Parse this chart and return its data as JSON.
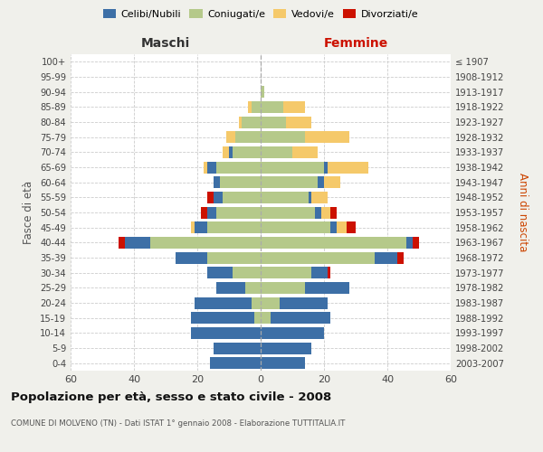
{
  "age_groups": [
    "0-4",
    "5-9",
    "10-14",
    "15-19",
    "20-24",
    "25-29",
    "30-34",
    "35-39",
    "40-44",
    "45-49",
    "50-54",
    "55-59",
    "60-64",
    "65-69",
    "70-74",
    "75-79",
    "80-84",
    "85-89",
    "90-94",
    "95-99",
    "100+"
  ],
  "birth_years": [
    "2003-2007",
    "1998-2002",
    "1993-1997",
    "1988-1992",
    "1983-1987",
    "1978-1982",
    "1973-1977",
    "1968-1972",
    "1963-1967",
    "1958-1962",
    "1953-1957",
    "1948-1952",
    "1943-1947",
    "1938-1942",
    "1933-1937",
    "1928-1932",
    "1923-1927",
    "1918-1922",
    "1913-1917",
    "1908-1912",
    "≤ 1907"
  ],
  "colors": {
    "celibi": "#3d6fa6",
    "coniugati": "#b5c98a",
    "vedovi": "#f5c96a",
    "divorziati": "#cc1100"
  },
  "males": {
    "celibi": [
      16,
      15,
      22,
      20,
      18,
      9,
      8,
      10,
      8,
      4,
      3,
      3,
      2,
      3,
      1,
      0,
      0,
      0,
      0,
      0,
      0
    ],
    "coniugati": [
      0,
      0,
      0,
      2,
      3,
      5,
      9,
      17,
      35,
      17,
      14,
      12,
      13,
      14,
      9,
      8,
      6,
      3,
      0,
      0,
      0
    ],
    "vedovi": [
      0,
      0,
      0,
      0,
      0,
      0,
      0,
      0,
      0,
      1,
      0,
      0,
      0,
      1,
      2,
      3,
      1,
      1,
      0,
      0,
      0
    ],
    "divorziati": [
      0,
      0,
      0,
      0,
      0,
      0,
      0,
      0,
      2,
      0,
      2,
      2,
      0,
      0,
      0,
      0,
      0,
      0,
      0,
      0,
      0
    ]
  },
  "females": {
    "celibi": [
      14,
      16,
      20,
      19,
      15,
      14,
      5,
      7,
      2,
      2,
      2,
      1,
      2,
      1,
      0,
      0,
      0,
      0,
      0,
      0,
      0
    ],
    "coniugati": [
      0,
      0,
      0,
      3,
      6,
      14,
      16,
      36,
      46,
      22,
      17,
      15,
      18,
      20,
      10,
      14,
      8,
      7,
      1,
      0,
      0
    ],
    "vedovi": [
      0,
      0,
      0,
      0,
      0,
      0,
      0,
      0,
      0,
      3,
      3,
      5,
      5,
      13,
      8,
      14,
      8,
      7,
      0,
      0,
      0
    ],
    "divorziati": [
      0,
      0,
      0,
      0,
      0,
      0,
      1,
      2,
      2,
      3,
      2,
      0,
      0,
      0,
      0,
      0,
      0,
      0,
      0,
      0,
      0
    ]
  },
  "xlim": 60,
  "title": "Popolazione per età, sesso e stato civile - 2008",
  "subtitle": "COMUNE DI MOLVENO (TN) - Dati ISTAT 1° gennaio 2008 - Elaborazione TUTTITALIA.IT",
  "ylabel_left": "Fasce di età",
  "ylabel_right": "Anni di nascita",
  "xlabel_left": "Maschi",
  "xlabel_right": "Femmine",
  "legend_labels": [
    "Celibi/Nubili",
    "Coniugati/e",
    "Vedovi/e",
    "Divorziati/e"
  ],
  "bg_color": "#f0f0eb",
  "plot_bg": "#ffffff"
}
